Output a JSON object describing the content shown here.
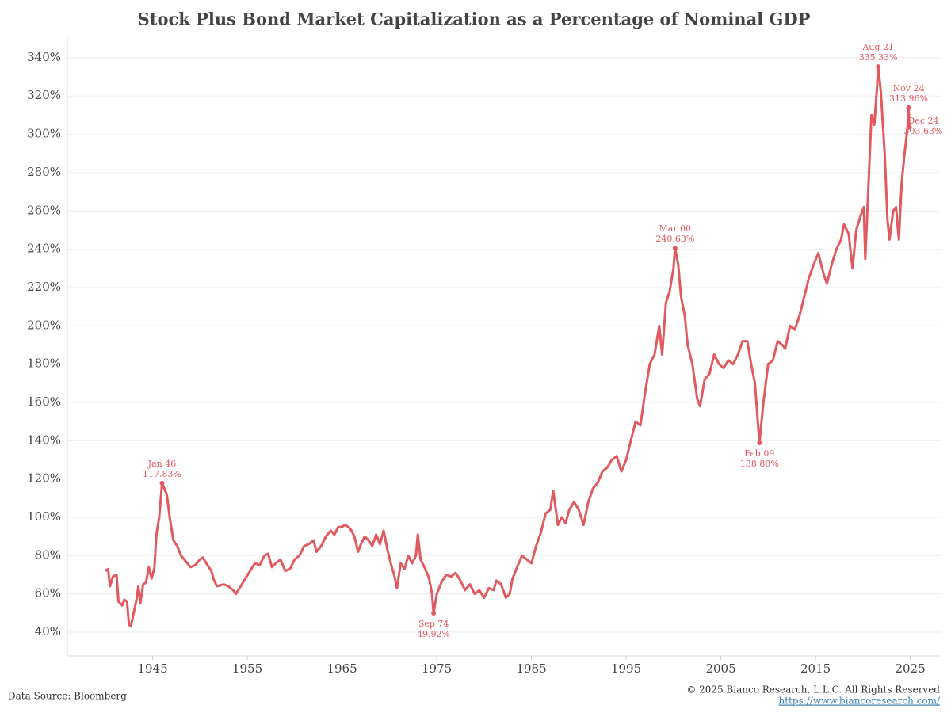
{
  "chart_data": {
    "type": "line",
    "title": "Stock Plus Bond Market Capitalization as a Percentage of Nominal GDP",
    "source": "Data Source: Bloomberg",
    "copyright": "© 2025 Bianco Research, L.L.C. All Rights Reserved",
    "url": "https://www.biancoresearch.com/",
    "xlim": [
      1936,
      2028.3
    ],
    "xticks": [
      1945,
      1955,
      1965,
      1975,
      1985,
      1995,
      2005,
      2015,
      2025
    ],
    "ylim": [
      27.6,
      350.3
    ],
    "yticks": [
      {
        "value": 40,
        "label": "40%"
      },
      {
        "value": 60,
        "label": "60%"
      },
      {
        "value": 80,
        "label": "80%"
      },
      {
        "value": 100,
        "label": "100%"
      },
      {
        "value": 120,
        "label": "120%"
      },
      {
        "value": 140,
        "label": "140%"
      },
      {
        "value": 160,
        "label": "160%"
      },
      {
        "value": 180,
        "label": "180%"
      },
      {
        "value": 200,
        "label": "200%"
      },
      {
        "value": 220,
        "label": "220%"
      },
      {
        "value": 240,
        "label": "240%"
      },
      {
        "value": 260,
        "label": "260%"
      },
      {
        "value": 280,
        "label": "280%"
      },
      {
        "value": 300,
        "label": "300%"
      },
      {
        "value": 320,
        "label": "320%"
      },
      {
        "value": 340,
        "label": "340%"
      }
    ],
    "grid": true,
    "series": [
      {
        "color": "#e05a5f",
        "x": [
          1940.0,
          1940.3,
          1940.5,
          1940.8,
          1941.2,
          1941.4,
          1941.8,
          1942.0,
          1942.3,
          1942.5,
          1942.7,
          1943.0,
          1943.3,
          1943.5,
          1943.7,
          1944.0,
          1944.3,
          1944.6,
          1944.9,
          1945.2,
          1945.4,
          1945.7,
          1946.0,
          1946.5,
          1946.8,
          1947.2,
          1947.6,
          1948.0,
          1948.5,
          1949.0,
          1949.5,
          1950.0,
          1950.3,
          1950.8,
          1951.2,
          1951.5,
          1951.8,
          1952.5,
          1953.0,
          1953.5,
          1953.8,
          1954.3,
          1954.8,
          1955.3,
          1955.8,
          1956.3,
          1956.8,
          1957.2,
          1957.6,
          1958.0,
          1958.5,
          1959.0,
          1959.5,
          1960.0,
          1960.5,
          1961.0,
          1961.5,
          1962.0,
          1962.3,
          1962.8,
          1963.3,
          1963.8,
          1964.2,
          1964.6,
          1965.0,
          1965.3,
          1965.7,
          1966.0,
          1966.3,
          1966.7,
          1967.0,
          1967.4,
          1967.8,
          1968.2,
          1968.6,
          1969.0,
          1969.4,
          1969.8,
          1970.2,
          1970.5,
          1970.8,
          1971.2,
          1971.6,
          1972.0,
          1972.4,
          1972.8,
          1973.0,
          1973.3,
          1973.8,
          1974.2,
          1974.5,
          1974.67,
          1975.0,
          1975.5,
          1976.0,
          1976.5,
          1977.0,
          1977.5,
          1978.0,
          1978.5,
          1979.0,
          1979.5,
          1980.0,
          1980.5,
          1981.0,
          1981.3,
          1981.8,
          1982.3,
          1982.7,
          1983.0,
          1983.5,
          1984.0,
          1984.5,
          1985.0,
          1985.5,
          1986.0,
          1986.5,
          1987.0,
          1987.3,
          1987.8,
          1988.2,
          1988.6,
          1989.0,
          1989.5,
          1990.0,
          1990.5,
          1991.0,
          1991.5,
          1992.0,
          1992.5,
          1993.0,
          1993.5,
          1994.0,
          1994.5,
          1995.0,
          1995.5,
          1996.0,
          1996.5,
          1997.0,
          1997.5,
          1998.0,
          1998.5,
          1998.8,
          1999.2,
          1999.6,
          2000.0,
          2000.17,
          2000.5,
          2000.8,
          2001.2,
          2001.5,
          2002.0,
          2002.5,
          2002.8,
          2003.3,
          2003.8,
          2004.3,
          2004.8,
          2005.3,
          2005.8,
          2006.3,
          2006.8,
          2007.3,
          2007.8,
          2008.2,
          2008.6,
          2008.9,
          2009.08,
          2009.5,
          2010.0,
          2010.5,
          2011.0,
          2011.5,
          2011.8,
          2012.3,
          2012.8,
          2013.3,
          2013.8,
          2014.3,
          2014.8,
          2015.3,
          2015.8,
          2016.2,
          2016.7,
          2017.2,
          2017.7,
          2018.0,
          2018.5,
          2018.9,
          2019.3,
          2019.8,
          2020.1,
          2020.25,
          2020.6,
          2020.9,
          2021.2,
          2021.5,
          2021.62,
          2021.9,
          2022.3,
          2022.6,
          2022.8,
          2023.2,
          2023.5,
          2023.8,
          2024.1,
          2024.4,
          2024.7,
          2024.83,
          2024.92
        ],
        "values": [
          72,
          73,
          64,
          69,
          70,
          56,
          54,
          57,
          56,
          44,
          43,
          50,
          57,
          64,
          55,
          65,
          66,
          74,
          68,
          74,
          91,
          100,
          117.83,
          112,
          100,
          88,
          85,
          80,
          77,
          74,
          75,
          78,
          79,
          75,
          72,
          67,
          64,
          65,
          64,
          62,
          60,
          64,
          68,
          72,
          76,
          75,
          80,
          81,
          74,
          76,
          78,
          72,
          73,
          78,
          80,
          85,
          86,
          88,
          82,
          85,
          90,
          93,
          91,
          95,
          95,
          96,
          95,
          93,
          90,
          82,
          86,
          90,
          88,
          85,
          91,
          86,
          93,
          83,
          75,
          70,
          63,
          76,
          73,
          80,
          76,
          80,
          91,
          78,
          73,
          68,
          60,
          49.92,
          60,
          66,
          70,
          69,
          71,
          67,
          62,
          65,
          60,
          62,
          58,
          63,
          62,
          67,
          65,
          58,
          60,
          68,
          74,
          80,
          78,
          76,
          85,
          92,
          102,
          104,
          114,
          96,
          100,
          97,
          104,
          108,
          104,
          96,
          108,
          115,
          118,
          124,
          126,
          130,
          132,
          124,
          130,
          140,
          150,
          148,
          165,
          180,
          185,
          200,
          185,
          212,
          218,
          230,
          240.63,
          232,
          215,
          205,
          190,
          180,
          162,
          158,
          172,
          175,
          185,
          180,
          178,
          182,
          180,
          185,
          192,
          192,
          180,
          170,
          150,
          138.88,
          160,
          180,
          182,
          192,
          190,
          188,
          200,
          198,
          205,
          215,
          225,
          232,
          238,
          228,
          222,
          232,
          240,
          245,
          253,
          248,
          230,
          250,
          258,
          262,
          235,
          275,
          310,
          305,
          325,
          335.33,
          322,
          290,
          255,
          245,
          260,
          262,
          245,
          275,
          290,
          303,
          313.96,
          303.63
        ]
      }
    ],
    "annotations": [
      {
        "label": "Jan 46",
        "value_label": "117.83%",
        "x": 1946.0,
        "value": 117.83,
        "position": "above"
      },
      {
        "label": "Sep 74",
        "value_label": "49.92%",
        "x": 1974.67,
        "value": 49.92,
        "position": "below"
      },
      {
        "label": "Mar 00",
        "value_label": "240.63%",
        "x": 2000.17,
        "value": 240.63,
        "position": "above"
      },
      {
        "label": "Feb 09",
        "value_label": "138.88%",
        "x": 2009.08,
        "value": 138.88,
        "position": "below"
      },
      {
        "label": "Aug 21",
        "value_label": "335.33%",
        "x": 2021.62,
        "value": 335.33,
        "position": "above"
      },
      {
        "label": "Nov 24",
        "value_label": "313.96%",
        "x": 2024.83,
        "value": 313.96,
        "position": "above"
      },
      {
        "label": "Dec 24",
        "value_label": "303.63%",
        "x": 2024.92,
        "value": 303.63,
        "position": "right"
      }
    ]
  }
}
